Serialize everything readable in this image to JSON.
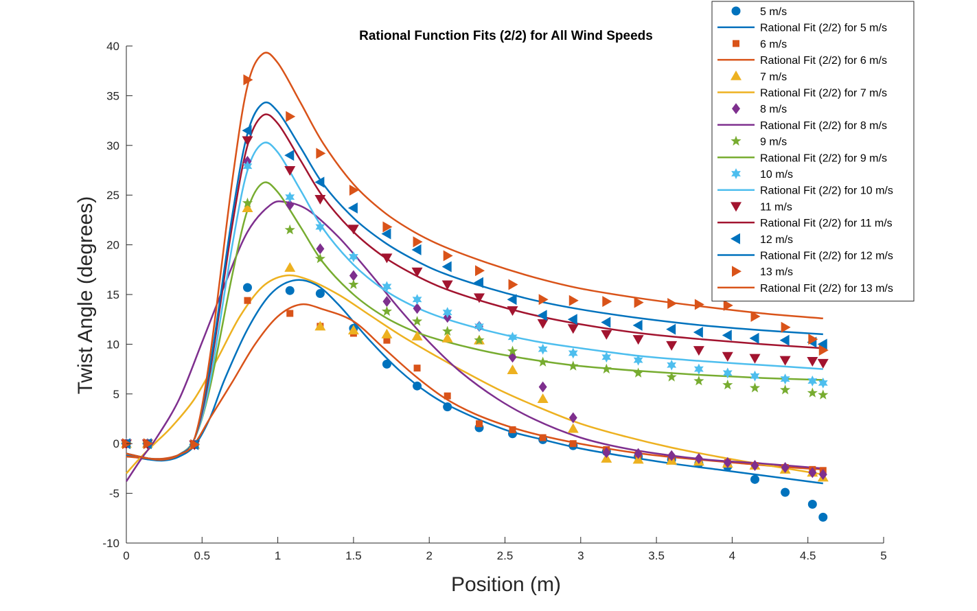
{
  "chart_data": {
    "type": "scatter",
    "title": "Rational Function Fits (2/2) for All Wind Speeds",
    "xlabel": "Position (m)",
    "ylabel": "Twist Angle (degrees)",
    "xlim": [
      0,
      5
    ],
    "ylim": [
      -10,
      40
    ],
    "xticks": [
      0,
      0.5,
      1,
      1.5,
      2,
      2.5,
      3,
      3.5,
      4,
      4.5,
      5
    ],
    "yticks": [
      -10,
      -5,
      0,
      5,
      10,
      15,
      20,
      25,
      30,
      35,
      40
    ],
    "tick_labels_x": [
      "0",
      "0.5",
      "1",
      "1.5",
      "2",
      "2.5",
      "3",
      "3.5",
      "4",
      "4.5",
      "5"
    ],
    "tick_labels_y": [
      "-10",
      "-5",
      "0",
      "5",
      "10",
      "15",
      "20",
      "25",
      "30",
      "35",
      "40"
    ],
    "grid": false,
    "legend_position": "top-right",
    "positions": [
      0,
      0.14,
      0.45,
      0.8,
      1.08,
      1.28,
      1.5,
      1.72,
      1.92,
      2.12,
      2.33,
      2.55,
      2.75,
      2.95,
      3.17,
      3.38,
      3.6,
      3.78,
      3.97,
      4.15,
      4.35,
      4.53,
      4.6
    ],
    "series": [
      {
        "name": "5 m/s",
        "fit_name": "Rational Fit (2/2) for 5 m/s",
        "color": "#0072BD",
        "marker": "circle",
        "values": [
          0,
          0,
          -0.1,
          15.7,
          15.4,
          15.1,
          11.6,
          8,
          5.8,
          3.7,
          1.6,
          1,
          0.4,
          -0.2,
          -0.8,
          -1.3,
          -1.6,
          -2,
          -2.3,
          -3.6,
          -4.9,
          -6.1,
          -7.4
        ],
        "fit": [
          [
            0,
            -1.2
          ],
          [
            0.15,
            -1.6
          ],
          [
            0.25,
            -1.7
          ],
          [
            0.35,
            -1.3
          ],
          [
            0.45,
            -0.2
          ],
          [
            0.55,
            2.5
          ],
          [
            0.65,
            6.5
          ],
          [
            0.8,
            11.5
          ],
          [
            0.95,
            15
          ],
          [
            1.1,
            16.4
          ],
          [
            1.25,
            16
          ],
          [
            1.4,
            14
          ],
          [
            1.6,
            10.5
          ],
          [
            1.8,
            7.4
          ],
          [
            2,
            5
          ],
          [
            2.2,
            3.3
          ],
          [
            2.5,
            1.4
          ],
          [
            2.75,
            0.4
          ],
          [
            3,
            -0.5
          ],
          [
            3.3,
            -1.3
          ],
          [
            3.6,
            -2
          ],
          [
            3.9,
            -2.6
          ],
          [
            4.2,
            -3.2
          ],
          [
            4.6,
            -4
          ]
        ]
      },
      {
        "name": "6 m/s",
        "fit_name": "Rational Fit (2/2) for 6 m/s",
        "color": "#D95319",
        "marker": "square",
        "values": [
          0,
          0,
          -0.1,
          14.4,
          13.1,
          11.8,
          11.1,
          10.4,
          7.6,
          4.8,
          2,
          1.4,
          0.6,
          0,
          -0.6,
          -1.1,
          -1.4,
          -1.7,
          -1.9,
          -2.2,
          -2.4,
          -2.6,
          -2.7
        ],
        "fit": [
          [
            0,
            -1.3
          ],
          [
            0.15,
            -1.5
          ],
          [
            0.25,
            -1.5
          ],
          [
            0.35,
            -1.1
          ],
          [
            0.45,
            0
          ],
          [
            0.55,
            2.5
          ],
          [
            0.7,
            6.2
          ],
          [
            0.85,
            10
          ],
          [
            1,
            12.8
          ],
          [
            1.15,
            14
          ],
          [
            1.3,
            13.5
          ],
          [
            1.5,
            12.3
          ],
          [
            1.7,
            9.6
          ],
          [
            1.9,
            6.9
          ],
          [
            2.1,
            4.6
          ],
          [
            2.3,
            3
          ],
          [
            2.55,
            1.6
          ],
          [
            2.8,
            0.6
          ],
          [
            3.1,
            -0.3
          ],
          [
            3.4,
            -1
          ],
          [
            3.7,
            -1.5
          ],
          [
            4,
            -1.9
          ],
          [
            4.3,
            -2.3
          ],
          [
            4.6,
            -2.6
          ]
        ]
      },
      {
        "name": "7 m/s",
        "fit_name": "Rational Fit (2/2) for 7 m/s",
        "color": "#EDB120",
        "marker": "triangle-up",
        "values": [
          0,
          0,
          -0.1,
          23.7,
          17.7,
          11.8,
          11.4,
          11,
          10.8,
          10.6,
          10.4,
          7.4,
          4.5,
          1.5,
          -1.5,
          -1.6,
          -1.7,
          -1.8,
          -2,
          -2.2,
          -2.6,
          -2.9,
          -3.4
        ],
        "fit": [
          [
            0,
            -3
          ],
          [
            0.1,
            -1.3
          ],
          [
            0.2,
            0.2
          ],
          [
            0.3,
            1.7
          ],
          [
            0.45,
            4.5
          ],
          [
            0.6,
            8.5
          ],
          [
            0.75,
            12.8
          ],
          [
            0.9,
            15.8
          ],
          [
            1.05,
            16.9
          ],
          [
            1.2,
            16.5
          ],
          [
            1.4,
            15
          ],
          [
            1.6,
            13
          ],
          [
            1.8,
            11
          ],
          [
            2,
            9.2
          ],
          [
            2.2,
            7.5
          ],
          [
            2.45,
            5.5
          ],
          [
            2.7,
            3.8
          ],
          [
            3,
            2
          ],
          [
            3.3,
            0.7
          ],
          [
            3.6,
            -0.4
          ],
          [
            3.9,
            -1.3
          ],
          [
            4.2,
            -2.1
          ],
          [
            4.6,
            -3.1
          ]
        ]
      },
      {
        "name": "8 m/s",
        "fit_name": "Rational Fit (2/2) for 8 m/s",
        "color": "#7E2F8E",
        "marker": "diamond",
        "values": [
          0,
          0,
          -0.1,
          28.4,
          24,
          19.6,
          16.9,
          14.3,
          13.6,
          12.7,
          11.8,
          8.7,
          5.7,
          2.6,
          -0.9,
          -1,
          -1.2,
          -1.5,
          -1.9,
          -2.2,
          -2.4,
          -2.9,
          -3.1
        ],
        "fit": [
          [
            0,
            -3.8
          ],
          [
            0.1,
            -1.5
          ],
          [
            0.2,
            0.6
          ],
          [
            0.35,
            4.5
          ],
          [
            0.5,
            10.2
          ],
          [
            0.65,
            16
          ],
          [
            0.8,
            21.3
          ],
          [
            0.95,
            24
          ],
          [
            1.05,
            24.3
          ],
          [
            1.2,
            23.5
          ],
          [
            1.4,
            20.8
          ],
          [
            1.6,
            17.3
          ],
          [
            1.8,
            13.6
          ],
          [
            2,
            10.2
          ],
          [
            2.2,
            7.3
          ],
          [
            2.45,
            4.5
          ],
          [
            2.7,
            2.4
          ],
          [
            3,
            0.6
          ],
          [
            3.3,
            -0.5
          ],
          [
            3.6,
            -1.2
          ],
          [
            3.9,
            -1.7
          ],
          [
            4.2,
            -2
          ],
          [
            4.6,
            -2.5
          ]
        ]
      },
      {
        "name": "9 m/s",
        "fit_name": "Rational Fit (2/2) for 9 m/s",
        "color": "#77AC30",
        "marker": "star",
        "values": [
          0,
          0,
          -0.1,
          24.2,
          21.5,
          18.6,
          16,
          13.3,
          12.3,
          11.3,
          10.4,
          9.3,
          8.2,
          7.8,
          7.5,
          7.1,
          6.7,
          6.3,
          5.9,
          5.6,
          5.4,
          5.1,
          4.9
        ],
        "fit": [
          [
            0,
            -1
          ],
          [
            0.15,
            -1.5
          ],
          [
            0.25,
            -1.6
          ],
          [
            0.35,
            -1.1
          ],
          [
            0.45,
            0.5
          ],
          [
            0.55,
            5.5
          ],
          [
            0.7,
            17
          ],
          [
            0.8,
            23.5
          ],
          [
            0.9,
            26.2
          ],
          [
            1,
            25.3
          ],
          [
            1.15,
            21.8
          ],
          [
            1.3,
            18.2
          ],
          [
            1.5,
            15
          ],
          [
            1.7,
            12.8
          ],
          [
            1.9,
            11.3
          ],
          [
            2.1,
            10.3
          ],
          [
            2.4,
            9.2
          ],
          [
            2.7,
            8.4
          ],
          [
            3,
            7.8
          ],
          [
            3.4,
            7.3
          ],
          [
            3.8,
            6.9
          ],
          [
            4.2,
            6.6
          ],
          [
            4.6,
            6.4
          ]
        ]
      },
      {
        "name": "10 m/s",
        "fit_name": "Rational Fit (2/2) for 10 m/s",
        "color": "#4DBEEE",
        "marker": "hexagram",
        "values": [
          0,
          0,
          -0.1,
          27.9,
          24.8,
          21.8,
          18.8,
          15.8,
          14.5,
          13.2,
          11.8,
          10.7,
          9.5,
          9.1,
          8.7,
          8.4,
          7.9,
          7.5,
          7.1,
          6.8,
          6.5,
          6.3,
          6.1
        ],
        "fit": [
          [
            0,
            -1
          ],
          [
            0.15,
            -1.5
          ],
          [
            0.25,
            -1.6
          ],
          [
            0.35,
            -1.1
          ],
          [
            0.45,
            0.5
          ],
          [
            0.55,
            6
          ],
          [
            0.7,
            20
          ],
          [
            0.8,
            27.5
          ],
          [
            0.9,
            30.2
          ],
          [
            1,
            29.3
          ],
          [
            1.15,
            25.5
          ],
          [
            1.3,
            21.6
          ],
          [
            1.5,
            18
          ],
          [
            1.7,
            15.5
          ],
          [
            1.9,
            13.8
          ],
          [
            2.1,
            12.6
          ],
          [
            2.4,
            11.3
          ],
          [
            2.7,
            10.3
          ],
          [
            3,
            9.6
          ],
          [
            3.4,
            8.8
          ],
          [
            3.8,
            8.3
          ],
          [
            4.2,
            7.9
          ],
          [
            4.6,
            7.5
          ]
        ]
      },
      {
        "name": "11 m/s",
        "fit_name": "Rational Fit (2/2) for 11 m/s",
        "color": "#A2142F",
        "marker": "triangle-down",
        "values": [
          0,
          0,
          -0.1,
          30.5,
          27.5,
          24.6,
          21.6,
          18.7,
          17.3,
          16,
          14.7,
          13.4,
          12.1,
          11.6,
          11,
          10.5,
          9.9,
          9.4,
          8.8,
          8.6,
          8.4,
          8.3,
          8.1
        ],
        "fit": [
          [
            0,
            -1
          ],
          [
            0.15,
            -1.5
          ],
          [
            0.25,
            -1.6
          ],
          [
            0.35,
            -1.1
          ],
          [
            0.45,
            0.5
          ],
          [
            0.55,
            7
          ],
          [
            0.7,
            22
          ],
          [
            0.8,
            30
          ],
          [
            0.9,
            33
          ],
          [
            1,
            32.2
          ],
          [
            1.15,
            28.5
          ],
          [
            1.3,
            24.8
          ],
          [
            1.5,
            21.3
          ],
          [
            1.7,
            18.8
          ],
          [
            1.9,
            17
          ],
          [
            2.1,
            15.6
          ],
          [
            2.4,
            14.1
          ],
          [
            2.7,
            12.9
          ],
          [
            3,
            12
          ],
          [
            3.4,
            11.1
          ],
          [
            3.8,
            10.5
          ],
          [
            4.2,
            10
          ],
          [
            4.6,
            9.6
          ]
        ]
      },
      {
        "name": "12 m/s",
        "fit_name": "Rational Fit (2/2) for 12 m/s",
        "color": "#0072BD",
        "marker": "triangle-left",
        "values": [
          0,
          0,
          -0.1,
          31.5,
          29,
          26.3,
          23.7,
          21.1,
          19.5,
          17.8,
          16.2,
          14.5,
          12.9,
          12.5,
          12.2,
          11.9,
          11.5,
          11.2,
          10.9,
          10.6,
          10.4,
          10.2,
          10
        ],
        "fit": [
          [
            0,
            -1
          ],
          [
            0.15,
            -1.5
          ],
          [
            0.25,
            -1.6
          ],
          [
            0.35,
            -1.1
          ],
          [
            0.45,
            0.5
          ],
          [
            0.55,
            7.5
          ],
          [
            0.7,
            23
          ],
          [
            0.8,
            31.2
          ],
          [
            0.9,
            34.2
          ],
          [
            1,
            33.4
          ],
          [
            1.15,
            29.8
          ],
          [
            1.3,
            26.1
          ],
          [
            1.5,
            22.7
          ],
          [
            1.7,
            20.3
          ],
          [
            1.9,
            18.5
          ],
          [
            2.1,
            17.1
          ],
          [
            2.4,
            15.6
          ],
          [
            2.7,
            14.4
          ],
          [
            3,
            13.5
          ],
          [
            3.4,
            12.6
          ],
          [
            3.8,
            11.9
          ],
          [
            4.2,
            11.4
          ],
          [
            4.6,
            11
          ]
        ]
      },
      {
        "name": "13 m/s",
        "fit_name": "Rational Fit (2/2) for 13 m/s",
        "color": "#D95319",
        "marker": "triangle-right",
        "values": [
          0,
          0,
          -0.1,
          36.6,
          32.9,
          29.2,
          25.5,
          21.8,
          20.3,
          18.9,
          17.4,
          16,
          14.5,
          14.4,
          14.3,
          14.2,
          14.1,
          14,
          13.9,
          12.8,
          11.7,
          10.5,
          9.4
        ],
        "fit": [
          [
            0,
            -1
          ],
          [
            0.15,
            -1.5
          ],
          [
            0.25,
            -1.6
          ],
          [
            0.35,
            -1.1
          ],
          [
            0.45,
            0.5
          ],
          [
            0.55,
            8.5
          ],
          [
            0.7,
            26.5
          ],
          [
            0.8,
            36
          ],
          [
            0.9,
            39.2
          ],
          [
            1,
            38.3
          ],
          [
            1.15,
            34.3
          ],
          [
            1.3,
            30.2
          ],
          [
            1.5,
            26.1
          ],
          [
            1.7,
            23.3
          ],
          [
            1.9,
            21.3
          ],
          [
            2.1,
            19.8
          ],
          [
            2.4,
            18.1
          ],
          [
            2.7,
            16.7
          ],
          [
            3,
            15.6
          ],
          [
            3.4,
            14.6
          ],
          [
            3.8,
            13.8
          ],
          [
            4.2,
            13.1
          ],
          [
            4.6,
            12.6
          ]
        ]
      }
    ]
  }
}
